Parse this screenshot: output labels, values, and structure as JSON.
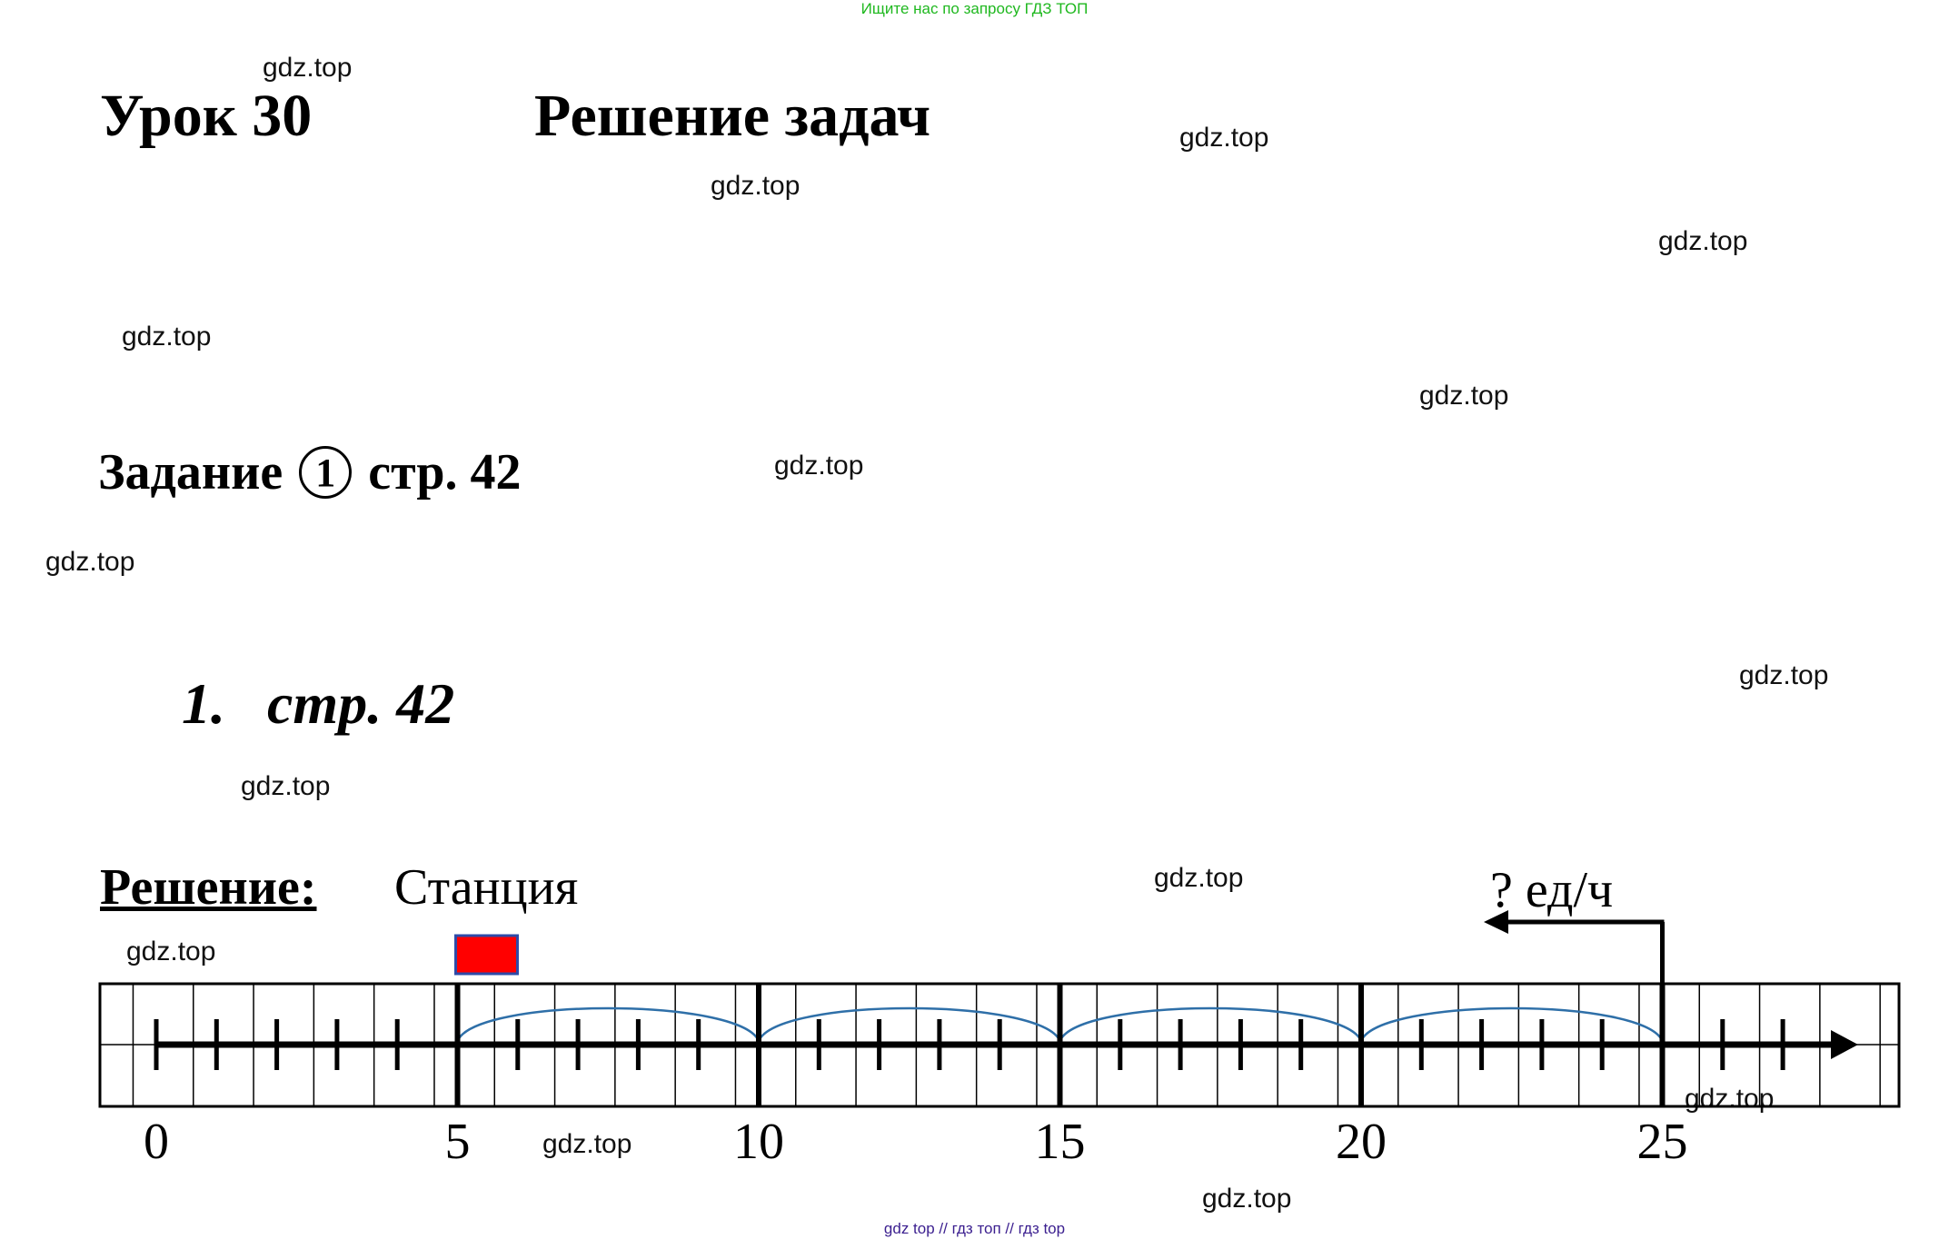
{
  "banner": "Ищите нас по запросу ГДЗ ТОП",
  "lesson_title": "Урок 30",
  "lesson_topic": "Решение задач",
  "task": {
    "prefix": "Задание",
    "number": "1",
    "page": "стр. 42"
  },
  "exercise": {
    "number": "1.",
    "page": "стр. 42"
  },
  "solution_label": "Решение:",
  "station_label": "Станция",
  "speed_label": "? ед/ч",
  "number_line": {
    "labels": [
      "0",
      "5",
      "10",
      "15",
      "20",
      "25"
    ],
    "station_at": 5,
    "start_at": 25,
    "arc_groups": [
      [
        5,
        10
      ],
      [
        10,
        15
      ],
      [
        15,
        20
      ],
      [
        20,
        25
      ]
    ],
    "flag_color": "#ff0000",
    "arc_color": "#2e6fa8"
  },
  "watermarks": [
    "gdz.top",
    "gdz.top",
    "gdz.top",
    "gdz.top",
    "gdz.top",
    "gdz.top",
    "gdz.top",
    "gdz.top",
    "gdz.top",
    "gdz.top",
    "gdz.top",
    "gdz.top",
    "gdz.top",
    "gdz.top",
    "gdz.top"
  ],
  "footer": "gdz top  //  гдз топ  //  гдз top"
}
